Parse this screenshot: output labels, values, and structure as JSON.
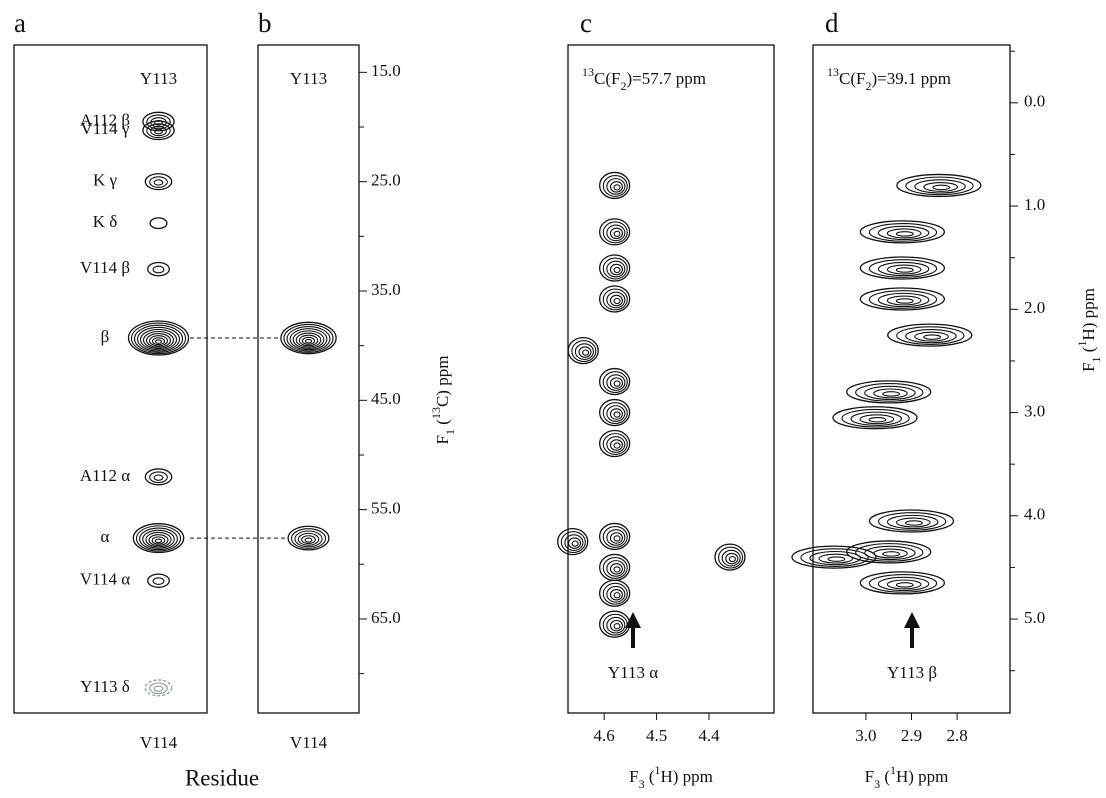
{
  "panels": [
    {
      "letter": "a",
      "column_label": "Y113",
      "residue_label": "V114",
      "x_title": "Residue",
      "peaks": [
        {
          "label": "A112 β",
          "c13": 19.5,
          "intensity": 4
        },
        {
          "label": "V114 γ",
          "c13": 20.3,
          "intensity": 4
        },
        {
          "label": "K  γ",
          "c13": 25.0,
          "intensity": 3
        },
        {
          "label": "K  δ",
          "c13": 28.8,
          "intensity": 1
        },
        {
          "label": "V114 β",
          "c13": 33.0,
          "intensity": 2
        },
        {
          "label": "β",
          "c13": 39.3,
          "intensity": 10
        },
        {
          "label": "A112 α",
          "c13": 52.0,
          "intensity": 3
        },
        {
          "label": "α",
          "c13": 57.6,
          "intensity": 8
        },
        {
          "label": "V114 α",
          "c13": 61.5,
          "intensity": 2
        },
        {
          "label": "Y113 δ",
          "c13": 71.3,
          "intensity": 3,
          "color": "#8a9a9a"
        }
      ]
    },
    {
      "letter": "b",
      "column_label": "Y113",
      "residue_label": "V114",
      "peaks": [
        {
          "c13": 39.3,
          "intensity": 9
        },
        {
          "c13": 57.6,
          "intensity": 6
        }
      ]
    },
    {
      "letter": "c",
      "header": [
        "13",
        "C(F",
        "2",
        ")=57.7 ppm"
      ],
      "annotation": "Y113 α",
      "x_title": [
        "F",
        "3",
        " (",
        "1",
        "H) ppm"
      ],
      "xlim": [
        4.669,
        4.276
      ],
      "xticks": [
        4.6,
        4.5,
        4.4
      ],
      "peaks": [
        {
          "h1": 4.58,
          "f1": 0.8
        },
        {
          "h1": 4.58,
          "f1": 1.25
        },
        {
          "h1": 4.58,
          "f1": 1.6
        },
        {
          "h1": 4.58,
          "f1": 1.9
        },
        {
          "h1": 4.58,
          "f1": 2.7
        },
        {
          "h1": 4.58,
          "f1": 3.0
        },
        {
          "h1": 4.58,
          "f1": 3.3
        },
        {
          "h1": 4.58,
          "f1": 4.2
        },
        {
          "h1": 4.58,
          "f1": 4.5
        },
        {
          "h1": 4.58,
          "f1": 4.75
        },
        {
          "h1": 4.58,
          "f1": 5.05
        },
        {
          "h1": 4.36,
          "f1": 4.4
        },
        {
          "h1": 4.66,
          "f1": 4.25
        },
        {
          "h1": 4.64,
          "f1": 2.4
        }
      ]
    },
    {
      "letter": "d",
      "header": [
        "13",
        "C(F",
        "2",
        ")=39.1 ppm"
      ],
      "annotation": "Y113 β",
      "x_title": [
        "F",
        "3",
        " (",
        "1",
        "H) ppm"
      ],
      "xlim": [
        3.116,
        2.684
      ],
      "xticks": [
        {
          "value": 3.0,
          "label": "3.0"
        },
        2.9,
        2.8
      ],
      "peaks": [
        {
          "h1": 2.84,
          "f1": 0.8
        },
        {
          "h1": 2.92,
          "f1": 1.25
        },
        {
          "h1": 2.92,
          "f1": 1.6
        },
        {
          "h1": 2.92,
          "f1": 1.9
        },
        {
          "h1": 2.86,
          "f1": 2.25
        },
        {
          "h1": 2.95,
          "f1": 2.8
        },
        {
          "h1": 2.98,
          "f1": 3.05
        },
        {
          "h1": 2.9,
          "f1": 4.05
        },
        {
          "h1": 2.95,
          "f1": 4.35
        },
        {
          "h1": 2.92,
          "f1": 4.65
        },
        {
          "h1": 3.07,
          "f1": 4.4
        }
      ]
    }
  ],
  "c13_axis": {
    "title": [
      "F",
      "1",
      " (",
      "13",
      "C) ppm"
    ],
    "ylim": [
      12.5,
      73.6
    ],
    "yticks": [
      {
        "value": 15,
        "label": "15.0"
      },
      {
        "value": 25,
        "label": "25.0"
      },
      {
        "value": 35,
        "label": "35.0"
      },
      {
        "value": 45,
        "label": "45.0"
      },
      {
        "value": 55,
        "label": "55.0"
      },
      {
        "value": 65,
        "label": "65.0"
      }
    ],
    "minor_ticks": [
      20,
      30,
      40,
      50,
      60,
      70
    ]
  },
  "h1_axis": {
    "title": [
      "F",
      "1",
      " (",
      "1",
      "H)  ppm"
    ],
    "ylim": [
      -0.56,
      5.91
    ],
    "yticks": [
      {
        "value": 0,
        "label": "0.0"
      },
      {
        "value": 1,
        "label": "1.0"
      },
      {
        "value": 2,
        "label": "2.0"
      },
      {
        "value": 3,
        "label": "3.0"
      },
      {
        "value": 4,
        "label": "4.0"
      },
      {
        "value": 5,
        "label": "5.0"
      }
    ],
    "minor_ticks": [
      -0.5,
      0.5,
      1.5,
      2.5,
      3.5,
      4.5,
      5.5
    ]
  }
}
